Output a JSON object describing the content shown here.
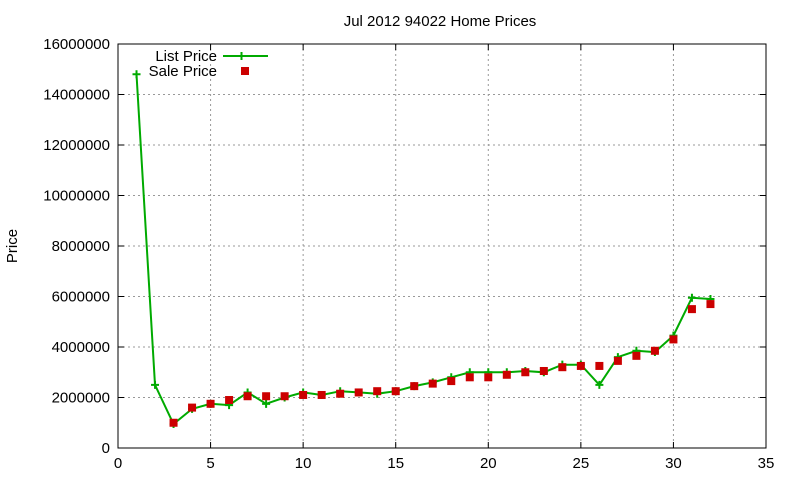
{
  "chart_data": {
    "type": "line",
    "title": "Jul 2012 94022 Home Prices",
    "xlabel": "",
    "ylabel": "Price",
    "xlim": [
      0,
      35
    ],
    "ylim": [
      0,
      16000000
    ],
    "xticks": [
      0,
      5,
      10,
      15,
      20,
      25,
      30,
      35
    ],
    "yticks": [
      0,
      2000000,
      4000000,
      6000000,
      8000000,
      10000000,
      12000000,
      14000000,
      16000000
    ],
    "grid": true,
    "legend_position": "top-left",
    "series": [
      {
        "name": "List Price",
        "style": "line-with-plus-markers",
        "color": "#00aa00",
        "x": [
          1,
          2,
          3,
          4,
          5,
          6,
          7,
          8,
          9,
          10,
          11,
          12,
          13,
          14,
          15,
          16,
          17,
          18,
          19,
          20,
          21,
          22,
          23,
          24,
          25,
          26,
          27,
          28,
          29,
          30,
          31,
          32
        ],
        "y": [
          14800000,
          2500000,
          950000,
          1550000,
          1750000,
          1700000,
          2200000,
          1750000,
          2000000,
          2200000,
          2100000,
          2250000,
          2200000,
          2150000,
          2250000,
          2450000,
          2600000,
          2800000,
          3000000,
          3000000,
          3000000,
          3050000,
          3000000,
          3300000,
          3300000,
          2500000,
          3600000,
          3850000,
          3800000,
          4450000,
          5950000,
          5900000
        ]
      },
      {
        "name": "Sale Price",
        "style": "square-markers",
        "color": "#cc0000",
        "x": [
          3,
          4,
          5,
          6,
          7,
          8,
          9,
          10,
          11,
          12,
          13,
          14,
          15,
          16,
          17,
          18,
          19,
          20,
          21,
          22,
          23,
          24,
          25,
          26,
          27,
          28,
          29,
          30,
          31,
          32
        ],
        "y": [
          1000000,
          1600000,
          1750000,
          1900000,
          2050000,
          2050000,
          2050000,
          2100000,
          2100000,
          2150000,
          2200000,
          2250000,
          2250000,
          2450000,
          2550000,
          2650000,
          2800000,
          2800000,
          2900000,
          3000000,
          3050000,
          3200000,
          3250000,
          3250000,
          3450000,
          3650000,
          3850000,
          4300000,
          5500000,
          5700000
        ]
      }
    ]
  }
}
